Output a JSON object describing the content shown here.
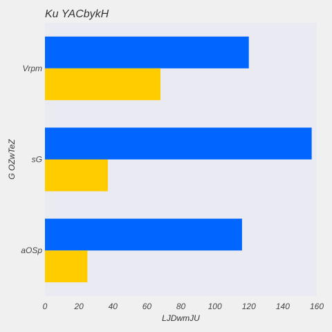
{
  "chart_data": {
    "type": "bar",
    "orientation": "horizontal",
    "title": "Ku YACbykH",
    "xlabel": "LJDwmJU",
    "ylabel": "G OZwTeZ",
    "categories": [
      "Vrpm",
      "sG",
      "aOSp"
    ],
    "series": [
      {
        "color": "#0066ff",
        "values": [
          120,
          157,
          116
        ]
      },
      {
        "color": "#ffcc00",
        "values": [
          68,
          37,
          25
        ]
      }
    ],
    "xlim": [
      0,
      160
    ],
    "xticks": [
      0,
      20,
      40,
      60,
      80,
      100,
      120,
      140,
      160
    ],
    "grid": false,
    "legend": "none",
    "colors": {
      "plot_background": "#e9eaf2",
      "page_background": "#f0f0f0"
    }
  }
}
